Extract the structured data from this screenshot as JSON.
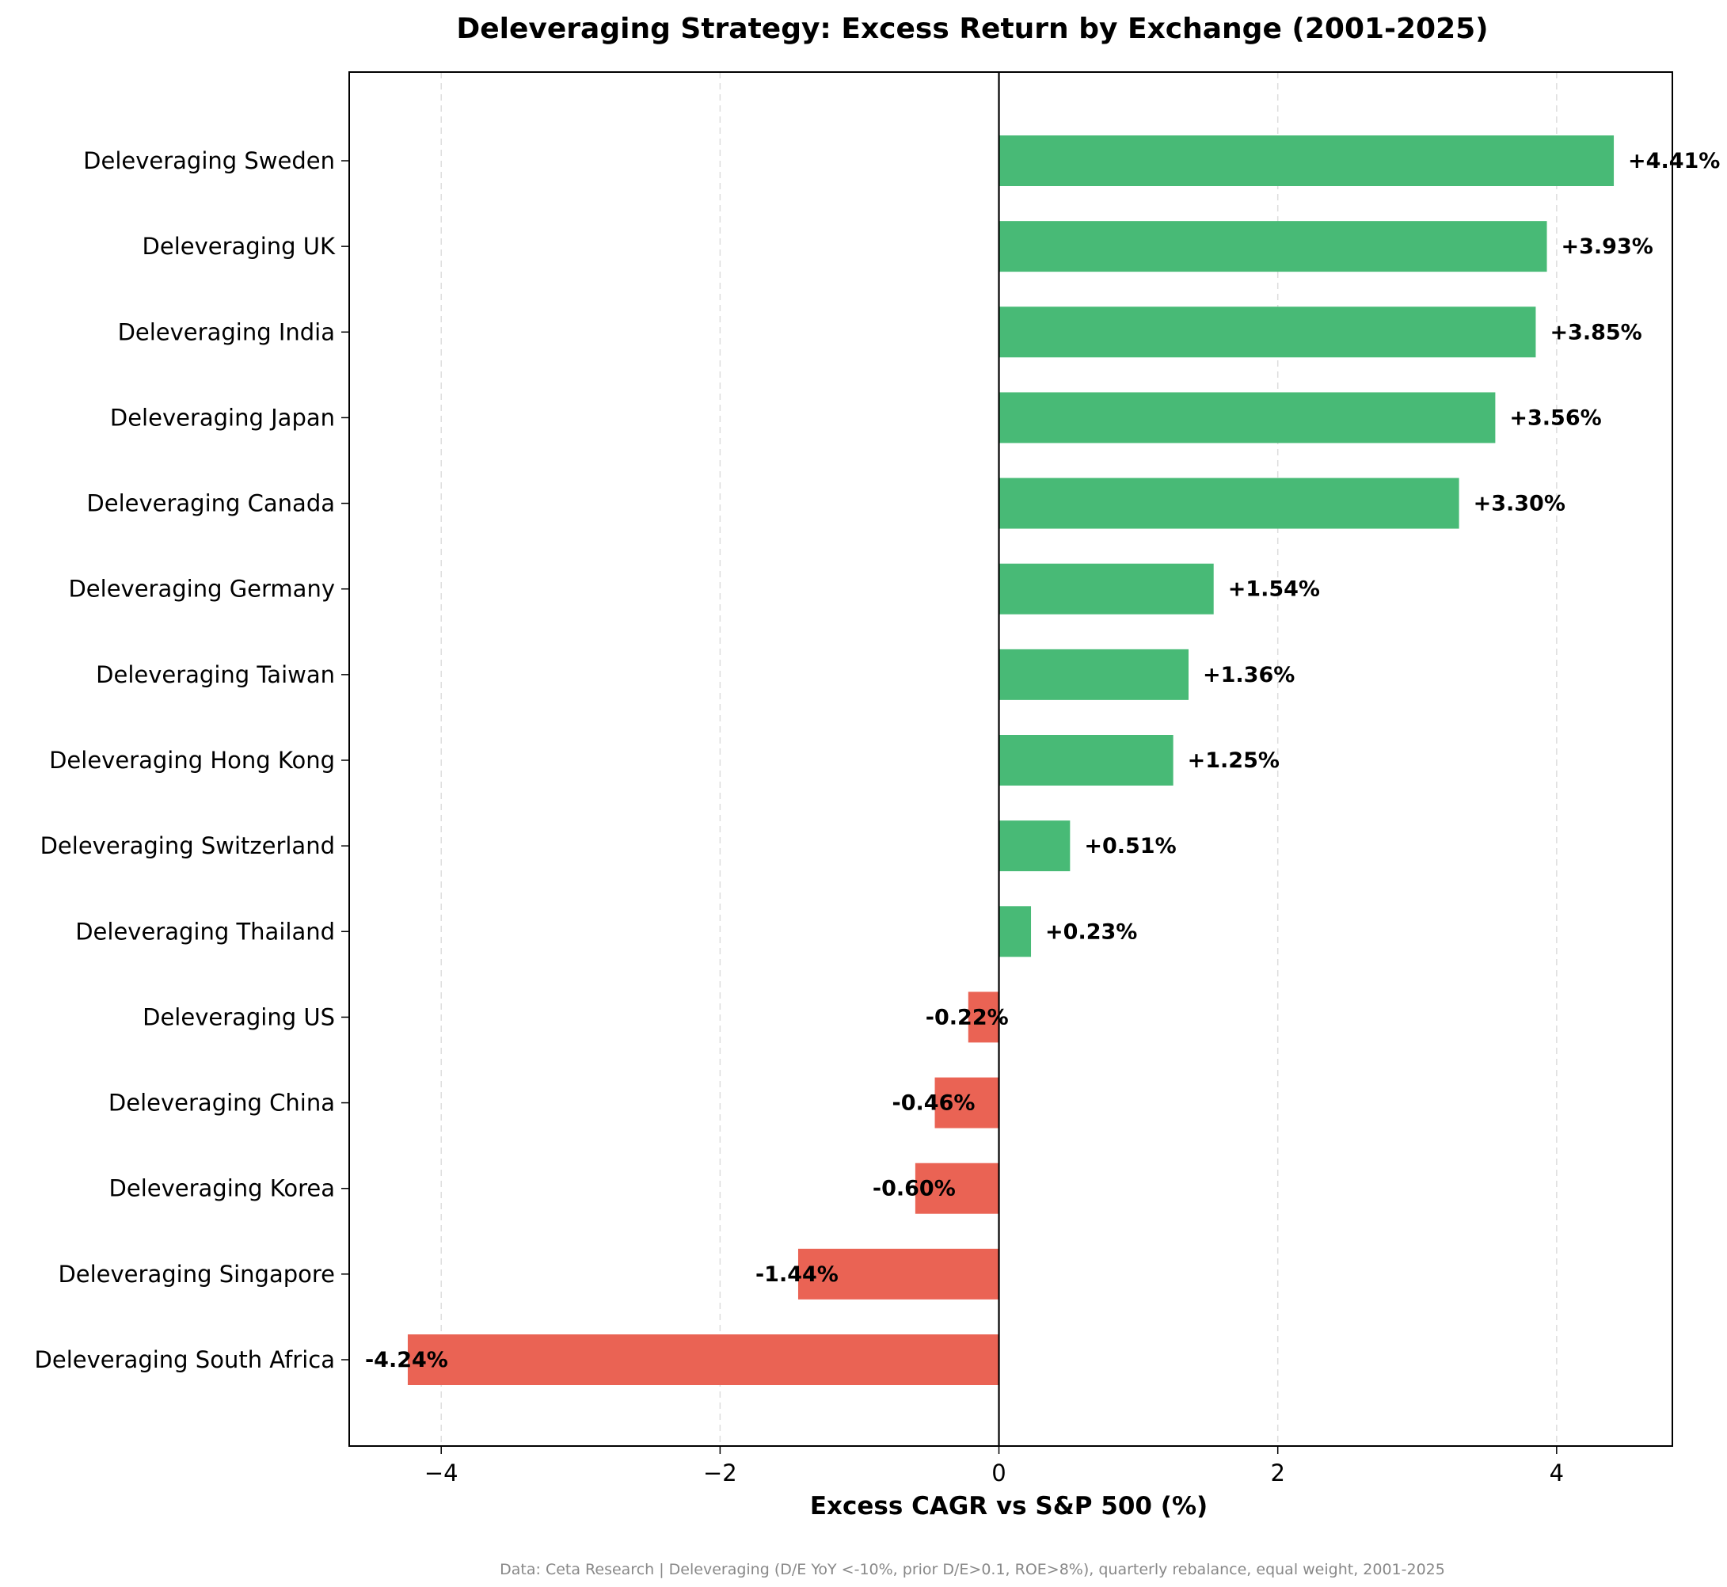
{
  "chart_data": {
    "type": "bar",
    "orientation": "horizontal",
    "title": "Deleveraging Strategy: Excess Return by Exchange (2001-2025)",
    "xlabel": "Excess CAGR vs S&P 500 (%)",
    "ylabel": "",
    "xlim": [
      -4.66,
      4.83
    ],
    "xticks": [
      -4,
      -2,
      0,
      2,
      4
    ],
    "xtick_labels": [
      "−4",
      "−2",
      "0",
      "2",
      "4"
    ],
    "grid": "x-dashed",
    "categories": [
      "Deleveraging Sweden",
      "Deleveraging UK",
      "Deleveraging India",
      "Deleveraging Japan",
      "Deleveraging Canada",
      "Deleveraging Germany",
      "Deleveraging Taiwan",
      "Deleveraging Hong Kong",
      "Deleveraging Switzerland",
      "Deleveraging Thailand",
      "Deleveraging US",
      "Deleveraging China",
      "Deleveraging Korea",
      "Deleveraging Singapore",
      "Deleveraging South Africa"
    ],
    "values": [
      4.41,
      3.93,
      3.85,
      3.56,
      3.3,
      1.54,
      1.36,
      1.25,
      0.51,
      0.23,
      -0.22,
      -0.46,
      -0.6,
      -1.44,
      -4.24
    ],
    "data_labels": [
      "+4.41%",
      "+3.93%",
      "+3.85%",
      "+3.56%",
      "+3.30%",
      "+1.54%",
      "+1.36%",
      "+1.25%",
      "+0.51%",
      "+0.23%",
      "-0.22%",
      "-0.46%",
      "-0.60%",
      "-1.44%",
      "-4.24%"
    ],
    "colors": {
      "positive": "#48ba76",
      "negative": "#ea6354",
      "zero_line": "#000000",
      "grid": "#dddddd"
    },
    "footnote": "Data: Ceta Research | Deleveraging (D/E YoY <-10%, prior D/E>0.1, ROE>8%), quarterly rebalance, equal weight, 2001-2025"
  }
}
